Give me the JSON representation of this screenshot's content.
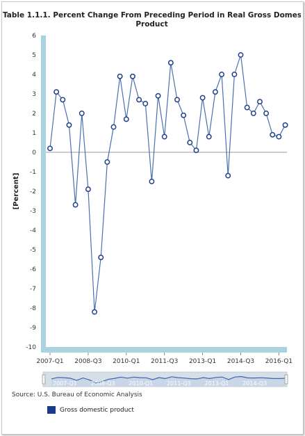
{
  "chart_data": {
    "type": "line",
    "title": "Table 1.1.1. Percent Change From Preceding Period in Real Gross Domestic Product",
    "ylabel": "[Percent]",
    "xlabel": "",
    "ylim": [
      -10,
      6
    ],
    "yticks": [
      "6",
      "5",
      "4",
      "3",
      "2",
      "1",
      "0",
      "-1",
      "-2",
      "-3",
      "-4",
      "-5",
      "-6",
      "-7",
      "-8",
      "-9",
      "-10"
    ],
    "xticks": [
      "2007-Q1",
      "2008-Q3",
      "2010-Q1",
      "2011-Q3",
      "2013-Q1",
      "2014-Q3",
      "2016-Q1"
    ],
    "navigator_labels": [
      "2007-Q1",
      "2008-Q3",
      "2010-Q1",
      "2011-Q3",
      "2013-Q1",
      "2014-Q3"
    ],
    "categories": [
      "2007-Q1",
      "2007-Q2",
      "2007-Q3",
      "2007-Q4",
      "2008-Q1",
      "2008-Q2",
      "2008-Q3",
      "2008-Q4",
      "2009-Q1",
      "2009-Q2",
      "2009-Q3",
      "2009-Q4",
      "2010-Q1",
      "2010-Q2",
      "2010-Q3",
      "2010-Q4",
      "2011-Q1",
      "2011-Q2",
      "2011-Q3",
      "2011-Q4",
      "2012-Q1",
      "2012-Q2",
      "2012-Q3",
      "2012-Q4",
      "2013-Q1",
      "2013-Q2",
      "2013-Q3",
      "2013-Q4",
      "2014-Q1",
      "2014-Q2",
      "2014-Q3",
      "2014-Q4",
      "2015-Q1",
      "2015-Q2",
      "2015-Q3",
      "2015-Q4",
      "2016-Q1",
      "2016-Q2"
    ],
    "series": [
      {
        "name": "Gross domestic product",
        "color": "#4a6fb0",
        "values": [
          0.2,
          3.1,
          2.7,
          1.4,
          -2.7,
          2.0,
          -1.9,
          -8.2,
          -5.4,
          -0.5,
          1.3,
          3.9,
          1.7,
          3.9,
          2.7,
          2.5,
          -1.5,
          2.9,
          0.8,
          4.6,
          2.7,
          1.9,
          0.5,
          0.1,
          2.8,
          0.8,
          3.1,
          4.0,
          -1.2,
          4.0,
          5.0,
          2.3,
          2.0,
          2.6,
          2.0,
          0.9,
          0.8,
          1.4
        ]
      }
    ],
    "grid": false,
    "legend_position": "bottom-left"
  },
  "source_text": "Source: U.S. Bureau of Economic Analysis",
  "legend_label": "Gross domestic product",
  "colors": {
    "line": "#4a6fb0",
    "marker_fill": "#ffffff",
    "marker_stroke": "#1f3f88",
    "axis_band": "#a9d3de",
    "legend_swatch": "#1a3a8c"
  }
}
